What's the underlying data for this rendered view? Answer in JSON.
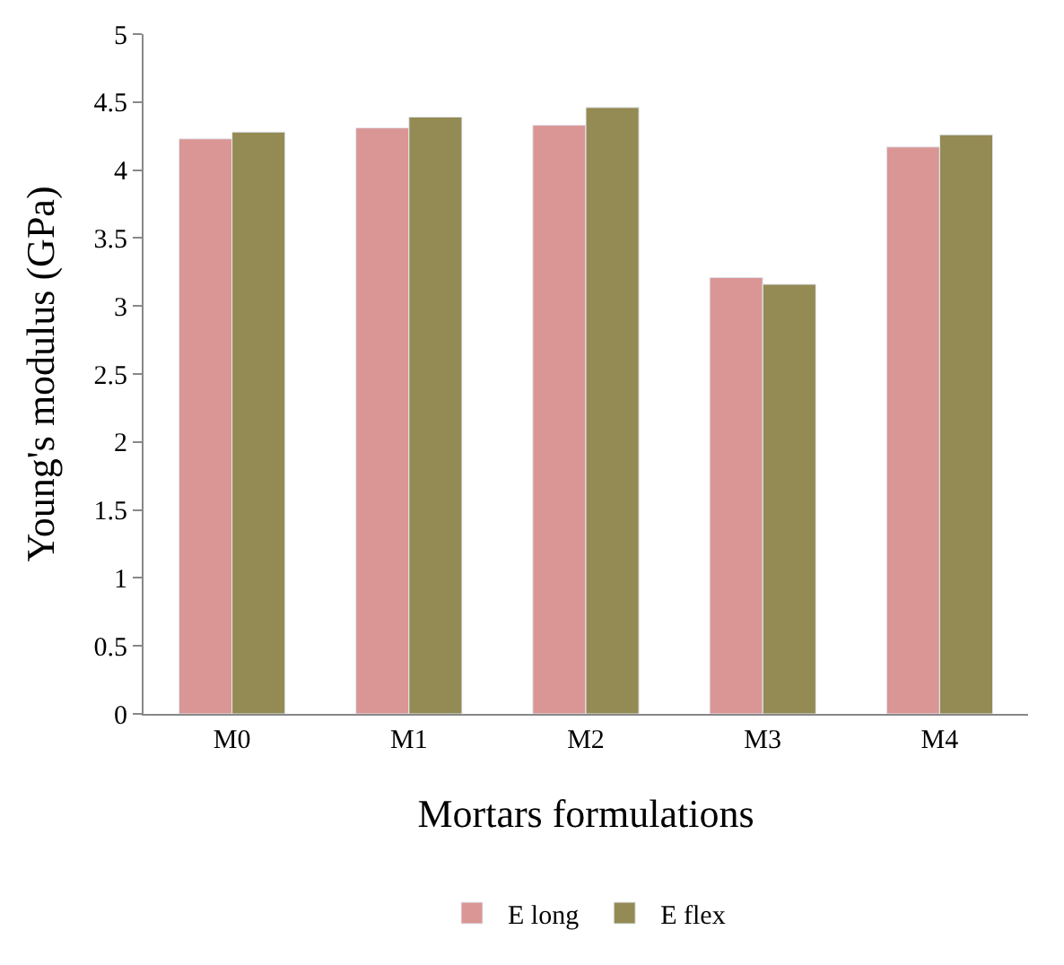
{
  "chart_data": {
    "type": "bar",
    "xlabel": "Mortars formulations",
    "ylabel": "Young's modulus (GPa)",
    "categories": [
      "M0",
      "M1",
      "M2",
      "M3",
      "M4"
    ],
    "series": [
      {
        "name": "E long",
        "color": "#d99694",
        "values": [
          4.23,
          4.31,
          4.33,
          3.21,
          4.17
        ]
      },
      {
        "name": "E flex",
        "color": "#948a54",
        "values": [
          4.28,
          4.39,
          4.46,
          3.16,
          4.26
        ]
      }
    ],
    "ylim": [
      0,
      5
    ],
    "yticks": [
      0,
      0.5,
      1,
      1.5,
      2,
      2.5,
      3,
      3.5,
      4,
      4.5,
      5
    ],
    "legend": "bottom"
  }
}
